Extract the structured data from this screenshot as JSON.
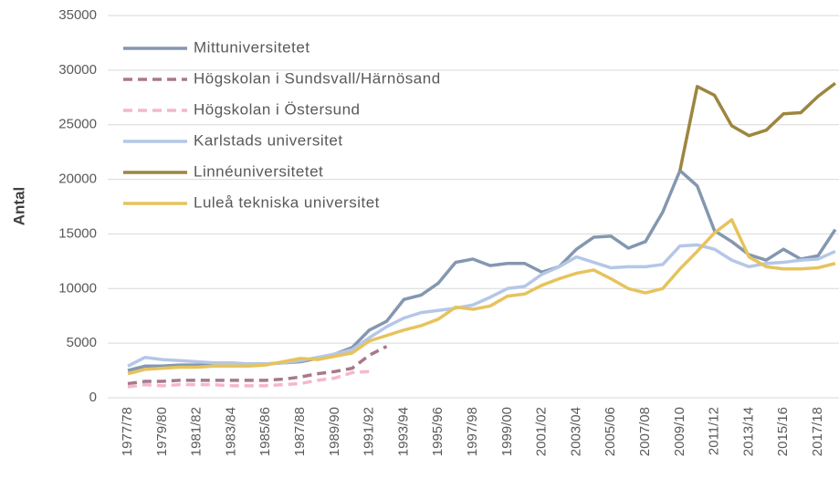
{
  "chart_data": {
    "type": "line",
    "y_label": "Antal",
    "categories": [
      "1977/78",
      null,
      "1979/80",
      null,
      "1981/82",
      null,
      "1983/84",
      null,
      "1985/86",
      null,
      "1987/88",
      null,
      "1989/90",
      null,
      "1991/92",
      null,
      "1993/94",
      null,
      "1995/96",
      null,
      "1997/98",
      null,
      "1999/00",
      null,
      "2001/02",
      null,
      "2003/04",
      null,
      "2005/06",
      null,
      "2007/08",
      null,
      "2009/10",
      null,
      "2011/12",
      null,
      "2013/14",
      null,
      "2015/16",
      null,
      "2017/18",
      null
    ],
    "series": [
      {
        "name": "Mittuniversitetet",
        "color": "#8497b0",
        "dash": false,
        "values": [
          2500,
          2900,
          2900,
          3000,
          3000,
          3100,
          3100,
          3100,
          3100,
          3200,
          3300,
          3600,
          4000,
          4600,
          6200,
          7000,
          9000,
          9400,
          10500,
          12400,
          12700,
          12100,
          12300,
          12300,
          11500,
          12000,
          13600,
          14700,
          14800,
          13700,
          14300,
          17000,
          20800,
          19400,
          15300,
          14300,
          13100,
          12600,
          13600,
          12700,
          13000,
          15400
        ]
      },
      {
        "name": "Högskolan i Sundsvall/Härnösand",
        "color": "#a8788e",
        "dash": true,
        "values": [
          1300,
          1500,
          1500,
          1600,
          1600,
          1600,
          1600,
          1600,
          1600,
          1700,
          1900,
          2200,
          2400,
          2700,
          3900,
          4700,
          null,
          null,
          null,
          null,
          null,
          null,
          null,
          null,
          null,
          null,
          null,
          null,
          null,
          null,
          null,
          null,
          null,
          null,
          null,
          null,
          null,
          null,
          null,
          null,
          null,
          null
        ]
      },
      {
        "name": "Högskolan i Östersund",
        "color": "#f4b8ca",
        "dash": true,
        "values": [
          1000,
          1200,
          1100,
          1200,
          1200,
          1200,
          1100,
          1100,
          1100,
          1200,
          1300,
          1600,
          1800,
          2300,
          2400,
          null,
          null,
          null,
          null,
          null,
          null,
          null,
          null,
          null,
          null,
          null,
          null,
          null,
          null,
          null,
          null,
          null,
          null,
          null,
          null,
          null,
          null,
          null,
          null,
          null,
          null,
          null
        ]
      },
      {
        "name": "Karlstads universitet",
        "color": "#b4c7e7",
        "dash": false,
        "values": [
          2900,
          3700,
          3500,
          3400,
          3300,
          3200,
          3200,
          3100,
          3100,
          3200,
          3400,
          3700,
          4000,
          4400,
          5500,
          6500,
          7300,
          7800,
          8000,
          8200,
          8500,
          9200,
          10000,
          10200,
          11300,
          12000,
          12900,
          12400,
          11900,
          12000,
          12000,
          12200,
          13900,
          14000,
          13600,
          12600,
          12000,
          12300,
          12400,
          12600,
          12700,
          13400
        ]
      },
      {
        "name": "Linnéuniversitetet",
        "color": "#9c8640",
        "dash": false,
        "values": [
          null,
          null,
          null,
          null,
          null,
          null,
          null,
          null,
          null,
          null,
          null,
          null,
          null,
          null,
          null,
          null,
          null,
          null,
          null,
          null,
          null,
          null,
          null,
          null,
          null,
          null,
          null,
          null,
          null,
          null,
          null,
          null,
          20800,
          28500,
          27700,
          24900,
          24000,
          24500,
          26000,
          26100,
          27600,
          28800
        ]
      },
      {
        "name": "Luleå tekniska universitet",
        "color": "#e6c35c",
        "dash": false,
        "values": [
          2200,
          2600,
          2700,
          2800,
          2800,
          2900,
          2900,
          2900,
          3000,
          3300,
          3600,
          3500,
          3800,
          4100,
          5200,
          5700,
          6200,
          6600,
          7200,
          8300,
          8100,
          8400,
          9300,
          9500,
          10300,
          10900,
          11400,
          11700,
          10900,
          10000,
          9600,
          10000,
          11800,
          13400,
          15100,
          16300,
          12900,
          12000,
          11800,
          11800,
          11900,
          12300
        ]
      }
    ],
    "ylim": [
      0,
      35000
    ],
    "yticks": [
      0,
      5000,
      10000,
      15000,
      20000,
      25000,
      30000,
      35000
    ],
    "grid": true,
    "legend": "upper left"
  }
}
